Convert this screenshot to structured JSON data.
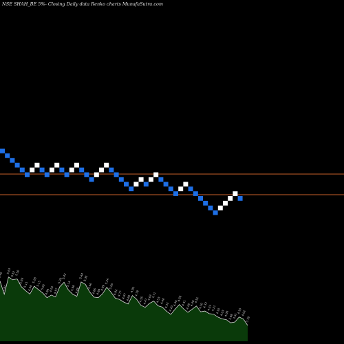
{
  "title": "NSE SHAH_BE 5%-  Closing Daily data Renko charts MunafaSutra.com",
  "colors": {
    "background": "#000000",
    "up_brick": "#ffffff",
    "down_brick": "#1e6fe6",
    "reference_line": "#c8602a",
    "volume_fill": "#0a3a0a",
    "volume_line": "#d8d8d8"
  },
  "chart_data": [
    {
      "type": "renko",
      "brick_size_note": "5%",
      "bricks": [
        {
          "i": 0,
          "level": 0,
          "dir": "down"
        },
        {
          "i": 1,
          "level": 1,
          "dir": "down"
        },
        {
          "i": 2,
          "level": 2,
          "dir": "down"
        },
        {
          "i": 3,
          "level": 3,
          "dir": "down"
        },
        {
          "i": 4,
          "level": 4,
          "dir": "down"
        },
        {
          "i": 5,
          "level": 5,
          "dir": "down"
        },
        {
          "i": 6,
          "level": 4,
          "dir": "up"
        },
        {
          "i": 7,
          "level": 3,
          "dir": "up"
        },
        {
          "i": 8,
          "level": 4,
          "dir": "down"
        },
        {
          "i": 9,
          "level": 5,
          "dir": "down"
        },
        {
          "i": 10,
          "level": 4,
          "dir": "up"
        },
        {
          "i": 11,
          "level": 3,
          "dir": "up"
        },
        {
          "i": 12,
          "level": 4,
          "dir": "down"
        },
        {
          "i": 13,
          "level": 5,
          "dir": "down"
        },
        {
          "i": 14,
          "level": 4,
          "dir": "up"
        },
        {
          "i": 15,
          "level": 3,
          "dir": "up"
        },
        {
          "i": 16,
          "level": 4,
          "dir": "down"
        },
        {
          "i": 17,
          "level": 5,
          "dir": "down"
        },
        {
          "i": 18,
          "level": 6,
          "dir": "down"
        },
        {
          "i": 19,
          "level": 5,
          "dir": "up"
        },
        {
          "i": 20,
          "level": 4,
          "dir": "up"
        },
        {
          "i": 21,
          "level": 3,
          "dir": "up"
        },
        {
          "i": 22,
          "level": 4,
          "dir": "down"
        },
        {
          "i": 23,
          "level": 5,
          "dir": "down"
        },
        {
          "i": 24,
          "level": 6,
          "dir": "down"
        },
        {
          "i": 25,
          "level": 7,
          "dir": "down"
        },
        {
          "i": 26,
          "level": 8,
          "dir": "down"
        },
        {
          "i": 27,
          "level": 7,
          "dir": "up"
        },
        {
          "i": 28,
          "level": 6,
          "dir": "up"
        },
        {
          "i": 29,
          "level": 7,
          "dir": "down"
        },
        {
          "i": 30,
          "level": 6,
          "dir": "up"
        },
        {
          "i": 31,
          "level": 5,
          "dir": "up"
        },
        {
          "i": 32,
          "level": 6,
          "dir": "down"
        },
        {
          "i": 33,
          "level": 7,
          "dir": "down"
        },
        {
          "i": 34,
          "level": 8,
          "dir": "down"
        },
        {
          "i": 35,
          "level": 9,
          "dir": "down"
        },
        {
          "i": 36,
          "level": 8,
          "dir": "up"
        },
        {
          "i": 37,
          "level": 7,
          "dir": "up"
        },
        {
          "i": 38,
          "level": 8,
          "dir": "down"
        },
        {
          "i": 39,
          "level": 9,
          "dir": "down"
        },
        {
          "i": 40,
          "level": 10,
          "dir": "down"
        },
        {
          "i": 41,
          "level": 11,
          "dir": "down"
        },
        {
          "i": 42,
          "level": 12,
          "dir": "down"
        },
        {
          "i": 43,
          "level": 13,
          "dir": "down"
        },
        {
          "i": 44,
          "level": 12,
          "dir": "up"
        },
        {
          "i": 45,
          "level": 11,
          "dir": "up"
        },
        {
          "i": 46,
          "level": 10,
          "dir": "up"
        },
        {
          "i": 47,
          "level": 9,
          "dir": "up"
        },
        {
          "i": 48,
          "level": 10,
          "dir": "down"
        }
      ],
      "reference_lines": [
        "upper",
        "lower"
      ],
      "volume_labels": [
        "5.48",
        "4.97",
        "5.63",
        "5.52",
        "5.56",
        "5.26",
        "5.11",
        "4.98",
        "5.28",
        "5.15",
        "5.02",
        "4.84",
        "4.94",
        "4.87",
        "5.26",
        "5.43",
        "5.14",
        "4.98",
        "4.89",
        "5.44",
        "5.35",
        "5.06",
        "4.86",
        "4.84",
        "4.99",
        "5.24",
        "5.05",
        "4.82",
        "4.77",
        "4.67",
        "4.60",
        "4.92",
        "4.78",
        "4.55",
        "4.47",
        "4.62",
        "4.71",
        "4.53",
        "4.48",
        "4.32",
        "4.20",
        "4.40",
        "4.58",
        "4.41",
        "4.28",
        "4.40",
        "4.52",
        "4.30",
        "4.33",
        "4.23",
        "4.21",
        "4.10",
        "4.03",
        "4.00",
        "3.88",
        "3.91",
        "4.10",
        "4.02",
        "3.78"
      ]
    }
  ]
}
